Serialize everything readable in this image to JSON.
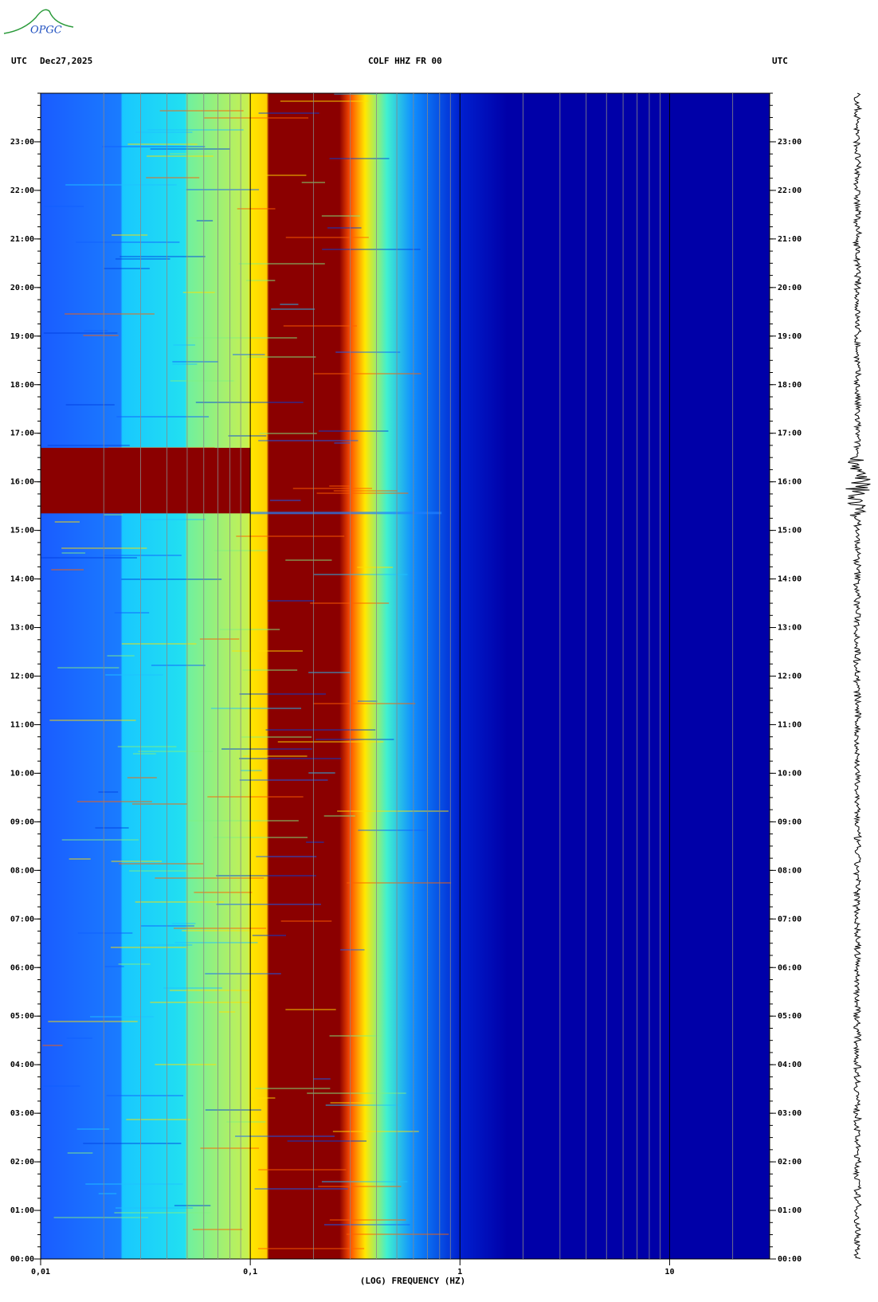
{
  "header": {
    "logo": "OPGC",
    "left_label": "UTC",
    "date": "Dec27,2025",
    "station": "COLF HHZ FR 00",
    "right_label": "UTC"
  },
  "chart_data": {
    "type": "spectrogram",
    "xlabel": "(LOG) FREQUENCY (HZ)",
    "xscale": "log",
    "xlim": [
      0.01,
      30
    ],
    "xticks": [
      {
        "value": 0.01,
        "label": "0,01"
      },
      {
        "value": 0.1,
        "label": "0,1"
      },
      1,
      10
    ],
    "ylim": [
      0,
      24
    ],
    "yticks": [
      {
        "value": 0,
        "label": "00:00"
      },
      {
        "value": 1,
        "label": "01:00"
      },
      {
        "value": 2,
        "label": "02:00"
      },
      {
        "value": 3,
        "label": "03:00"
      },
      {
        "value": 4,
        "label": "04:00"
      },
      {
        "value": 5,
        "label": "05:00"
      },
      {
        "value": 6,
        "label": "06:00"
      },
      {
        "value": 7,
        "label": "07:00"
      },
      {
        "value": 8,
        "label": "08:00"
      },
      {
        "value": 9,
        "label": "09:00"
      },
      {
        "value": 10,
        "label": "10:00"
      },
      {
        "value": 11,
        "label": "11:00"
      },
      {
        "value": 12,
        "label": "12:00"
      },
      {
        "value": 13,
        "label": "13:00"
      },
      {
        "value": 14,
        "label": "14:00"
      },
      {
        "value": 15,
        "label": "15:00"
      },
      {
        "value": 16,
        "label": "16:00"
      },
      {
        "value": 17,
        "label": "17:00"
      },
      {
        "value": 18,
        "label": "18:00"
      },
      {
        "value": 19,
        "label": "19:00"
      },
      {
        "value": 20,
        "label": "20:00"
      },
      {
        "value": 21,
        "label": "21:00"
      },
      {
        "value": 22,
        "label": "22:00"
      },
      {
        "value": 23,
        "label": "23:00"
      }
    ]
  }
}
